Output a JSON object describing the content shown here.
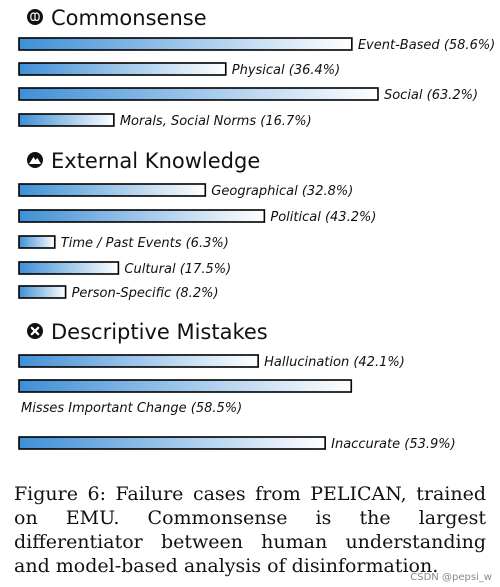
{
  "chart_data": {
    "type": "bar",
    "orientation": "horizontal",
    "value_unit": "%",
    "xlim": [
      0,
      100
    ],
    "grid": false,
    "groups": [
      {
        "title": "Commonsense",
        "icon": "brain-icon",
        "bars": [
          {
            "label": "Event-Based (58.6%)",
            "value": 58.6,
            "label_position": "right"
          },
          {
            "label": "Physical (36.4%)",
            "value": 36.4,
            "label_position": "right"
          },
          {
            "label": "Social (63.2%)",
            "value": 63.2,
            "label_position": "right"
          },
          {
            "label": "Morals, Social Norms (16.7%)",
            "value": 16.7,
            "label_position": "right"
          }
        ]
      },
      {
        "title": "External Knowledge",
        "icon": "mountain-icon",
        "bars": [
          {
            "label": "Geographical (32.8%)",
            "value": 32.8,
            "label_position": "right"
          },
          {
            "label": "Political (43.2%)",
            "value": 43.2,
            "label_position": "right"
          },
          {
            "label": "Time / Past Events (6.3%)",
            "value": 6.3,
            "label_position": "right"
          },
          {
            "label": "Cultural (17.5%)",
            "value": 17.5,
            "label_position": "right"
          },
          {
            "label": "Person-Specific (8.2%)",
            "value": 8.2,
            "label_position": "right"
          }
        ]
      },
      {
        "title": "Descriptive Mistakes",
        "icon": "x-circle-icon",
        "bars": [
          {
            "label": "Hallucination (42.1%)",
            "value": 42.1,
            "label_position": "right"
          },
          {
            "label": "Misses Important Change (58.5%)",
            "value": 58.5,
            "label_position": "below"
          },
          {
            "label": "Inaccurate (53.9%)",
            "value": 53.9,
            "label_position": "right"
          }
        ]
      }
    ],
    "colors": {
      "gradient_start": "#3f8fd6",
      "gradient_end": "#ffffff",
      "outline": "#000000"
    }
  },
  "caption": "Figure 6:  Failure cases from PELICAN, trained on EMU. Commonsense is the largest differentiator between human understanding and model-based analysis of disinformation.",
  "watermark": "CSDN @pepsi_w"
}
